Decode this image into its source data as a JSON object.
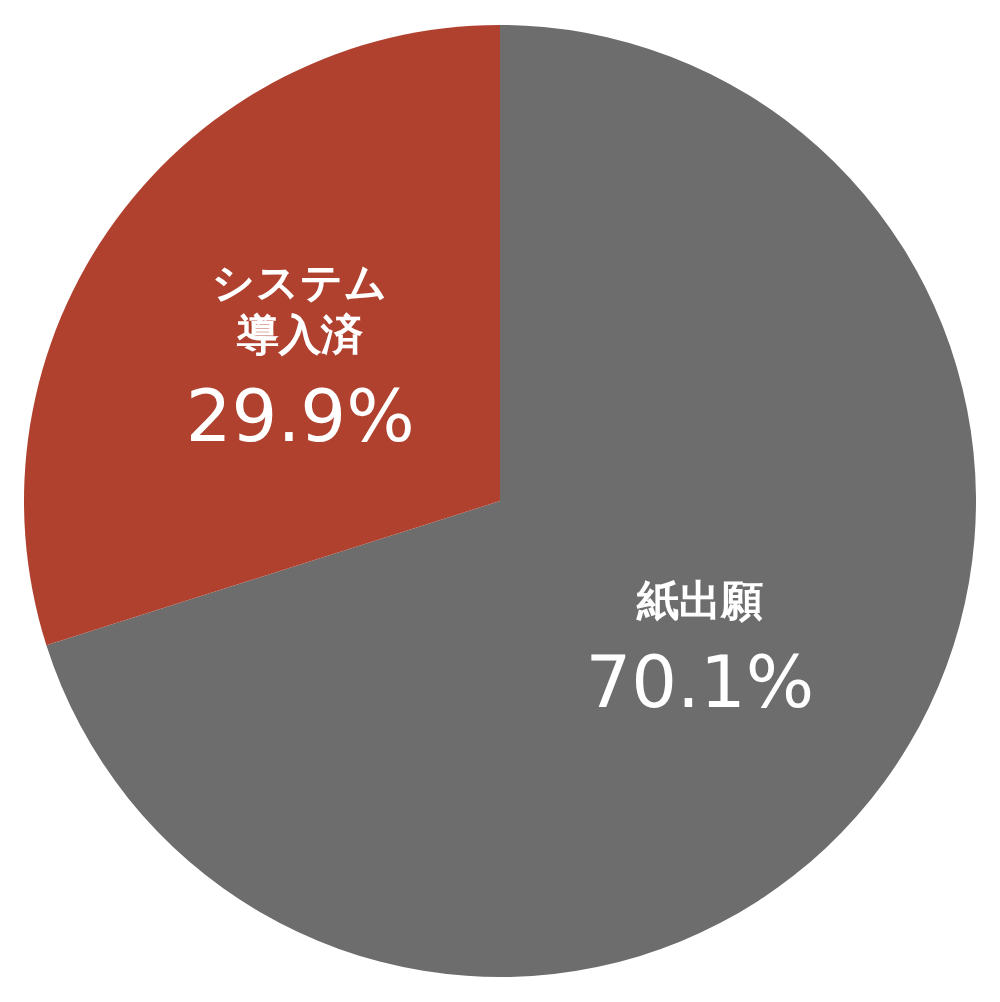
{
  "chart_data": {
    "type": "pie",
    "categories": [
      "紙出願",
      "システム導入済"
    ],
    "values": [
      70.1,
      29.9
    ],
    "colors": [
      "#6d6d6d",
      "#b0412f"
    ],
    "value_labels": [
      "70.1%",
      "29.9%"
    ]
  }
}
